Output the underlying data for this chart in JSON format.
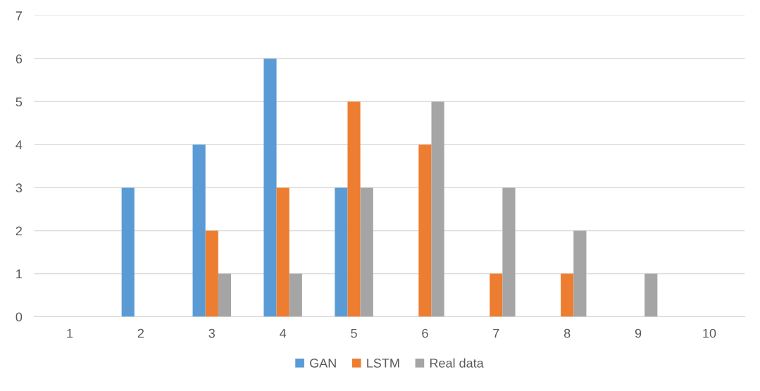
{
  "chart_data": {
    "type": "bar",
    "categories": [
      "1",
      "2",
      "3",
      "4",
      "5",
      "6",
      "7",
      "8",
      "9",
      "10"
    ],
    "series": [
      {
        "name": "GAN",
        "color": "#5b9bd5",
        "values": [
          0,
          3,
          4,
          6,
          3,
          0,
          0,
          0,
          0,
          0
        ]
      },
      {
        "name": "LSTM",
        "color": "#ed7d31",
        "values": [
          0,
          0,
          2,
          3,
          5,
          4,
          1,
          1,
          0,
          0
        ]
      },
      {
        "name": "Real data",
        "color": "#a5a5a5",
        "values": [
          0,
          0,
          1,
          1,
          3,
          5,
          3,
          2,
          1,
          0
        ]
      }
    ],
    "ylim": [
      0,
      7
    ],
    "yticks": [
      0,
      1,
      2,
      3,
      4,
      5,
      6,
      7
    ],
    "grid": "y",
    "legend": "bottom"
  }
}
